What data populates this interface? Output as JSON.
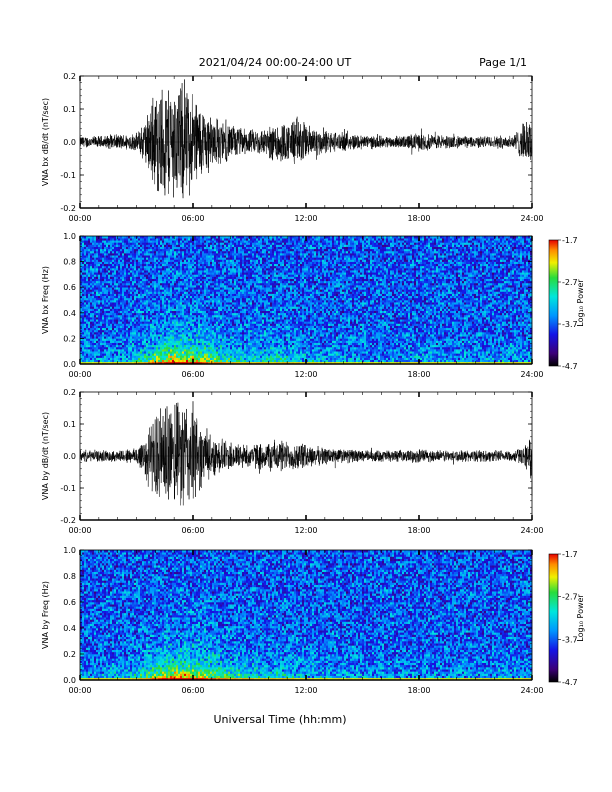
{
  "header": {
    "title": "2021/04/24  00:00-24:00 UT",
    "page": "Page 1/1"
  },
  "x_ticks": [
    "00:00",
    "06:00",
    "12:00",
    "18:00",
    "24:00"
  ],
  "xlabel": "Universal Time (hh:mm)",
  "chart_data": [
    {
      "type": "line",
      "title": "",
      "ylabel": "VNA bx dB/dt (nT/sec)",
      "xlim_hours": [
        0,
        24
      ],
      "ylim": [
        -0.2,
        0.2
      ],
      "y_ticks": [
        "0.2",
        "0.1",
        "0.0",
        "-0.1",
        "-0.2"
      ],
      "envelope_hours": [
        0,
        1,
        2,
        3,
        3.5,
        4,
        4.5,
        5,
        5.5,
        6,
        6.5,
        7,
        8,
        9,
        10,
        10.5,
        11,
        11.5,
        12,
        13,
        14,
        15,
        16,
        17,
        17.5,
        18,
        19,
        20,
        21,
        22,
        23,
        23.5,
        24
      ],
      "envelope_amp": [
        0.02,
        0.02,
        0.025,
        0.03,
        0.08,
        0.17,
        0.2,
        0.19,
        0.2,
        0.17,
        0.12,
        0.09,
        0.06,
        0.04,
        0.05,
        0.08,
        0.06,
        0.09,
        0.06,
        0.04,
        0.03,
        0.025,
        0.02,
        0.02,
        0.025,
        0.03,
        0.025,
        0.02,
        0.02,
        0.02,
        0.025,
        0.06,
        0.08
      ]
    },
    {
      "type": "heatmap",
      "title": "",
      "ylabel": "VNA bx Freq (Hz)",
      "xlim_hours": [
        0,
        24
      ],
      "ylim": [
        0,
        1.0
      ],
      "y_ticks": [
        "1.0",
        "0.8",
        "0.6",
        "0.4",
        "0.2",
        "0.0"
      ],
      "colorbar": {
        "label": "Log₁₀ Power",
        "ticks": [
          "-1.7",
          "-2.7",
          "-3.7",
          "-4.7"
        ],
        "range": [
          -4.7,
          -1.7
        ]
      },
      "activity_hours": [
        0,
        2,
        3,
        4,
        5,
        6,
        7,
        8,
        9,
        10,
        11,
        12,
        14,
        16,
        18,
        20,
        22,
        24
      ],
      "activity_level": [
        0.15,
        0.2,
        0.35,
        0.7,
        0.95,
        0.9,
        0.65,
        0.45,
        0.35,
        0.35,
        0.4,
        0.25,
        0.2,
        0.15,
        0.18,
        0.15,
        0.15,
        0.2
      ]
    },
    {
      "type": "line",
      "title": "",
      "ylabel": "VNA by dB/dt (nT/sec)",
      "xlim_hours": [
        0,
        24
      ],
      "ylim": [
        -0.2,
        0.2
      ],
      "y_ticks": [
        "0.2",
        "0.1",
        "0.0",
        "-0.1",
        "-0.2"
      ],
      "envelope_hours": [
        0,
        1,
        2,
        3,
        3.5,
        4,
        4.5,
        5,
        5.5,
        6,
        6.5,
        7,
        8,
        9,
        10,
        10.5,
        11,
        11.5,
        12,
        13,
        14,
        15,
        16,
        17,
        17.5,
        18,
        19,
        20,
        21,
        22,
        23,
        23.5,
        24
      ],
      "envelope_amp": [
        0.02,
        0.02,
        0.02,
        0.03,
        0.09,
        0.14,
        0.19,
        0.17,
        0.2,
        0.18,
        0.1,
        0.07,
        0.05,
        0.04,
        0.05,
        0.06,
        0.05,
        0.05,
        0.04,
        0.03,
        0.025,
        0.02,
        0.02,
        0.02,
        0.02,
        0.025,
        0.02,
        0.02,
        0.02,
        0.02,
        0.02,
        0.03,
        0.07
      ]
    },
    {
      "type": "heatmap",
      "title": "",
      "ylabel": "VNA by Freq (Hz)",
      "xlim_hours": [
        0,
        24
      ],
      "ylim": [
        0,
        1.0
      ],
      "y_ticks": [
        "1.0",
        "0.8",
        "0.6",
        "0.4",
        "0.2",
        "0.0"
      ],
      "colorbar": {
        "label": "Log₁₀ Power",
        "ticks": [
          "-1.7",
          "-2.7",
          "-3.7",
          "-4.7"
        ],
        "range": [
          -4.7,
          -1.7
        ]
      },
      "activity_hours": [
        0,
        2,
        3,
        4,
        5,
        6,
        7,
        8,
        9,
        10,
        11,
        12,
        14,
        16,
        18,
        20,
        22,
        24
      ],
      "activity_level": [
        0.15,
        0.2,
        0.35,
        0.7,
        0.95,
        0.9,
        0.7,
        0.5,
        0.4,
        0.35,
        0.35,
        0.25,
        0.2,
        0.15,
        0.15,
        0.15,
        0.15,
        0.2
      ]
    }
  ]
}
